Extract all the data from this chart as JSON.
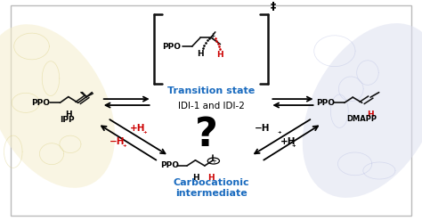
{
  "bg_color": "#ffffff",
  "border_color": "#bbbbbb",
  "fig_width": 4.74,
  "fig_height": 2.48,
  "dpi": 100,
  "transition_state_label": "Transition state",
  "idi_label": "IDI-1 and IDI-2",
  "carbocationic_label": "Carbocationic\nintermediate",
  "ipp_label": "IPP",
  "dmapp_label": "DMAPP",
  "question_mark": "?",
  "dagger": "‡",
  "blue_color": "#1a6bbf",
  "red_color": "#cc0000",
  "black_color": "#111111",
  "left_bg_color": "#f5eecc",
  "right_bg_color": "#dde0f0"
}
